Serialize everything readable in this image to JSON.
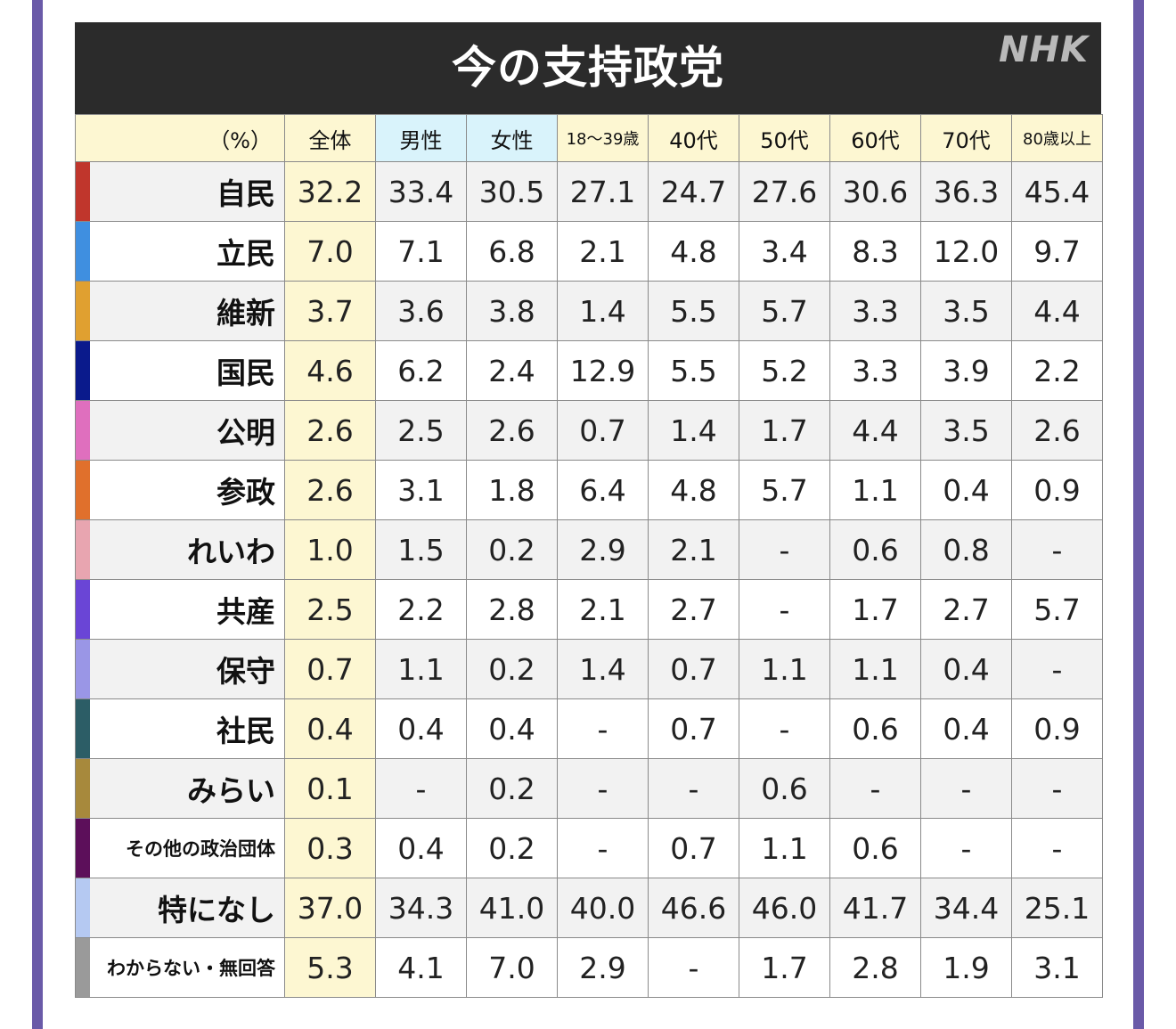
{
  "title": "今の支持政党",
  "logo": "NHK",
  "chart_data": {
    "type": "table",
    "title": "今の支持政党",
    "unit": "（%）",
    "columns": [
      "全体",
      "男性",
      "女性",
      "18〜39歳",
      "40代",
      "50代",
      "60代",
      "70代",
      "80歳以上"
    ],
    "rows": [
      {
        "party": "自民",
        "color": "#c0362c",
        "values": [
          "32.2",
          "33.4",
          "30.5",
          "27.1",
          "24.7",
          "27.6",
          "30.6",
          "36.3",
          "45.4"
        ]
      },
      {
        "party": "立民",
        "color": "#3f8fe0",
        "values": [
          "7.0",
          "7.1",
          "6.8",
          "2.1",
          "4.8",
          "3.4",
          "8.3",
          "12.0",
          "9.7"
        ]
      },
      {
        "party": "維新",
        "color": "#e0a030",
        "values": [
          "3.7",
          "3.6",
          "3.8",
          "1.4",
          "5.5",
          "5.7",
          "3.3",
          "3.5",
          "4.4"
        ]
      },
      {
        "party": "国民",
        "color": "#0a1a8c",
        "values": [
          "4.6",
          "6.2",
          "2.4",
          "12.9",
          "5.5",
          "5.2",
          "3.3",
          "3.9",
          "2.2"
        ]
      },
      {
        "party": "公明",
        "color": "#df6fbe",
        "values": [
          "2.6",
          "2.5",
          "2.6",
          "0.7",
          "1.4",
          "1.7",
          "4.4",
          "3.5",
          "2.6"
        ]
      },
      {
        "party": "参政",
        "color": "#e0702c",
        "values": [
          "2.6",
          "3.1",
          "1.8",
          "6.4",
          "4.8",
          "5.7",
          "1.1",
          "0.4",
          "0.9"
        ]
      },
      {
        "party": "れいわ",
        "color": "#e8a5b0",
        "values": [
          "1.0",
          "1.5",
          "0.2",
          "2.9",
          "2.1",
          "-",
          "0.6",
          "0.8",
          "-"
        ]
      },
      {
        "party": "共産",
        "color": "#6a45d6",
        "values": [
          "2.5",
          "2.2",
          "2.8",
          "2.1",
          "2.7",
          "-",
          "1.7",
          "2.7",
          "5.7"
        ]
      },
      {
        "party": "保守",
        "color": "#9a96e6",
        "values": [
          "0.7",
          "1.1",
          "0.2",
          "1.4",
          "0.7",
          "1.1",
          "1.1",
          "0.4",
          "-"
        ]
      },
      {
        "party": "社民",
        "color": "#2c5d66",
        "values": [
          "0.4",
          "0.4",
          "0.4",
          "-",
          "0.7",
          "-",
          "0.6",
          "0.4",
          "0.9"
        ]
      },
      {
        "party": "みらい",
        "color": "#a7893c",
        "values": [
          "0.1",
          "-",
          "0.2",
          "-",
          "-",
          "0.6",
          "-",
          "-",
          "-"
        ]
      },
      {
        "party": "その他の政治団体",
        "color": "#5c0f5a",
        "values": [
          "0.3",
          "0.4",
          "0.2",
          "-",
          "0.7",
          "1.1",
          "0.6",
          "-",
          "-"
        ]
      },
      {
        "party": "特になし",
        "color": "#b5c9f2",
        "values": [
          "37.0",
          "34.3",
          "41.0",
          "40.0",
          "46.6",
          "46.0",
          "41.7",
          "34.4",
          "25.1"
        ]
      },
      {
        "party": "わからない・無回答",
        "color": "#9a9a9a",
        "values": [
          "5.3",
          "4.1",
          "7.0",
          "2.9",
          "-",
          "1.7",
          "2.8",
          "1.9",
          "3.1"
        ]
      }
    ]
  }
}
